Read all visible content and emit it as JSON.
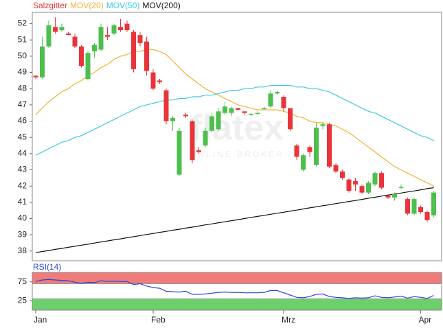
{
  "chart_data": [
    {
      "type": "candlestick",
      "name": "Salzgitter",
      "up_color": "#4cbf4c",
      "down_color": "#e8343a",
      "categories": [
        "Jan",
        null,
        null,
        null,
        null,
        null,
        null,
        null,
        null,
        null,
        null,
        null,
        null,
        null,
        null,
        null,
        null,
        null,
        "Feb",
        null,
        null,
        null,
        null,
        null,
        null,
        null,
        null,
        null,
        null,
        null,
        null,
        null,
        null,
        null,
        null,
        null,
        null,
        null,
        "Mrz",
        null,
        null,
        null,
        null,
        null,
        null,
        null,
        null,
        null,
        null,
        null,
        null,
        null,
        null,
        null,
        null,
        null,
        null,
        null,
        null,
        "Apr",
        null,
        null
      ],
      "open": [
        48.8,
        48.7,
        50.6,
        51.8,
        51.6,
        51.4,
        51.2,
        50.6,
        48.6,
        50.3,
        50.4,
        51.3,
        51.4,
        51.8,
        52.0,
        51.5,
        51.3,
        50.9,
        49.0,
        48.5,
        47.9,
        46.0,
        42.7,
        46.4,
        46.0,
        44.2,
        44.5,
        45.4,
        45.5,
        46.5,
        46.5,
        46.8,
        46.6,
        46.4,
        46.5,
        46.8,
        46.9,
        47.7,
        47.5,
        46.8,
        44.5,
        43.0,
        44.4,
        43.3,
        45.7,
        45.8,
        43.3,
        42.9,
        42.4,
        42.3,
        42.0,
        41.6,
        42.1,
        42.8,
        41.4,
        41.3,
        41.9,
        41.2,
        40.3,
        40.7,
        40.4,
        40.2
      ],
      "high": [
        48.8,
        51.2,
        52.2,
        52.4,
        52.0,
        51.5,
        51.4,
        50.7,
        50.3,
        50.8,
        52.0,
        51.8,
        52.0,
        52.3,
        52.2,
        51.6,
        51.5,
        51.2,
        49.2,
        48.6,
        48.0,
        46.3,
        45.6,
        46.5,
        46.1,
        44.4,
        45.6,
        46.5,
        46.8,
        47.2,
        46.9,
        46.8,
        46.6,
        46.5,
        46.6,
        46.9,
        47.9,
        47.9,
        47.6,
        46.8,
        44.6,
        44.0,
        44.5,
        45.9,
        45.9,
        45.9,
        43.4,
        43.0,
        42.5,
        42.5,
        42.1,
        42.3,
        42.9,
        42.9,
        41.5,
        41.6,
        42.1,
        41.3,
        41.3,
        40.8,
        40.5,
        41.7
      ],
      "low": [
        48.6,
        48.6,
        50.5,
        51.4,
        51.5,
        51.3,
        50.5,
        49.3,
        48.5,
        49.9,
        50.3,
        51.0,
        51.3,
        51.5,
        51.5,
        49.0,
        50.6,
        48.8,
        47.9,
        48.3,
        45.8,
        45.4,
        42.6,
        46.2,
        43.4,
        44.0,
        44.4,
        45.3,
        45.4,
        46.4,
        46.3,
        46.7,
        46.4,
        46.3,
        46.4,
        46.7,
        46.8,
        47.6,
        46.6,
        45.4,
        43.6,
        42.9,
        43.8,
        43.2,
        45.5,
        43.1,
        42.8,
        42.4,
        41.6,
        41.7,
        41.5,
        41.5,
        42.0,
        41.8,
        41.2,
        41.1,
        41.8,
        40.2,
        40.2,
        40.3,
        39.8,
        40.1
      ],
      "close": [
        48.7,
        50.6,
        51.9,
        51.5,
        51.8,
        51.3,
        50.6,
        49.4,
        50.2,
        50.7,
        51.8,
        51.2,
        51.9,
        51.6,
        51.6,
        49.2,
        50.8,
        49.1,
        48.0,
        48.4,
        46.0,
        46.2,
        45.4,
        46.3,
        43.6,
        44.1,
        45.4,
        46.3,
        46.6,
        46.9,
        46.8,
        46.7,
        46.5,
        46.45,
        46.5,
        46.8,
        47.7,
        47.8,
        46.8,
        45.5,
        43.8,
        43.9,
        44.1,
        45.6,
        45.8,
        43.2,
        42.9,
        42.5,
        41.7,
        42.1,
        41.6,
        42.2,
        42.8,
        41.9,
        41.3,
        41.5,
        41.95,
        40.3,
        41.2,
        40.4,
        39.9,
        41.6
      ],
      "overlays": [
        {
          "name": "MOV(20)",
          "color": "#f5b031",
          "values": [
            46.4,
            46.8,
            47.2,
            47.5,
            47.8,
            48.0,
            48.3,
            48.5,
            48.8,
            49.0,
            49.3,
            49.5,
            49.8,
            50.0,
            50.1,
            50.3,
            50.3,
            50.4,
            50.4,
            50.3,
            50.1,
            49.7,
            49.3,
            48.9,
            48.6,
            48.3,
            48.0,
            47.8,
            47.6,
            47.4,
            47.2,
            47.0,
            46.9,
            46.8,
            46.7,
            46.7,
            46.7,
            46.7,
            46.6,
            46.5,
            46.3,
            46.2,
            46.0,
            45.9,
            45.9,
            45.8,
            45.7,
            45.5,
            45.3,
            45.0,
            44.7,
            44.4,
            44.1,
            43.8,
            43.5,
            43.2,
            43.0,
            42.8,
            42.6,
            42.4,
            42.2,
            42.0
          ]
        },
        {
          "name": "MOV(50)",
          "color": "#3cc8e6",
          "values": [
            43.9,
            44.1,
            44.3,
            44.5,
            44.7,
            44.8,
            45.0,
            45.1,
            45.3,
            45.5,
            45.7,
            45.9,
            46.1,
            46.3,
            46.5,
            46.7,
            46.9,
            47.0,
            47.1,
            47.2,
            47.3,
            47.3,
            47.4,
            47.4,
            47.5,
            47.5,
            47.6,
            47.6,
            47.7,
            47.8,
            47.9,
            47.9,
            48.0,
            48.0,
            48.1,
            48.1,
            48.2,
            48.2,
            48.2,
            48.2,
            48.1,
            48.1,
            48.0,
            48.0,
            47.9,
            47.8,
            47.6,
            47.4,
            47.2,
            47.0,
            46.8,
            46.6,
            46.5,
            46.3,
            46.1,
            45.9,
            45.7,
            45.5,
            45.3,
            45.1,
            45.0,
            44.8
          ]
        },
        {
          "name": "MOV(200)",
          "color": "#111111",
          "values": [
            37.9,
            37.97,
            38.03,
            38.1,
            38.16,
            38.23,
            38.29,
            38.36,
            38.42,
            38.49,
            38.56,
            38.62,
            38.69,
            38.75,
            38.82,
            38.88,
            38.95,
            39.02,
            39.08,
            39.15,
            39.21,
            39.28,
            39.34,
            39.41,
            39.47,
            39.54,
            39.61,
            39.67,
            39.74,
            39.8,
            39.87,
            39.93,
            40.0,
            40.07,
            40.13,
            40.2,
            40.26,
            40.33,
            40.39,
            40.46,
            40.52,
            40.59,
            40.66,
            40.72,
            40.79,
            40.85,
            40.92,
            40.98,
            41.05,
            41.11,
            41.18,
            41.25,
            41.31,
            41.38,
            41.44,
            41.51,
            41.57,
            41.64,
            41.7,
            41.77,
            41.84,
            41.9
          ]
        }
      ],
      "ylim": [
        37.4,
        52.7
      ],
      "yticks": [
        38,
        39,
        40,
        41,
        42,
        43,
        44,
        45,
        46,
        47,
        48,
        49,
        50,
        51,
        52
      ],
      "watermark": {
        "brand": "flatex",
        "tagline": "ONLINE BROKER"
      }
    },
    {
      "type": "line",
      "title": "RSI(14)",
      "color": "#2a45d8",
      "values": [
        76,
        80,
        81,
        80,
        79,
        78,
        74,
        71,
        74,
        73,
        78,
        76,
        77,
        76,
        76,
        68,
        70,
        64,
        60,
        58,
        50,
        49,
        48,
        50,
        42,
        42,
        43,
        45,
        47,
        48,
        47,
        47,
        46,
        46,
        46,
        47,
        52,
        52,
        46,
        40,
        34,
        33,
        36,
        42,
        43,
        36,
        34,
        33,
        31,
        33,
        32,
        33,
        38,
        34,
        33,
        35,
        37,
        32,
        36,
        34,
        31,
        39
      ],
      "ylim": [
        0,
        100
      ],
      "yticks": [
        25,
        75
      ],
      "bands": [
        {
          "from": 70,
          "to": 100,
          "color": "#f07b7b"
        },
        {
          "from": 0,
          "to": 30,
          "color": "#6ccf6c"
        }
      ]
    }
  ]
}
